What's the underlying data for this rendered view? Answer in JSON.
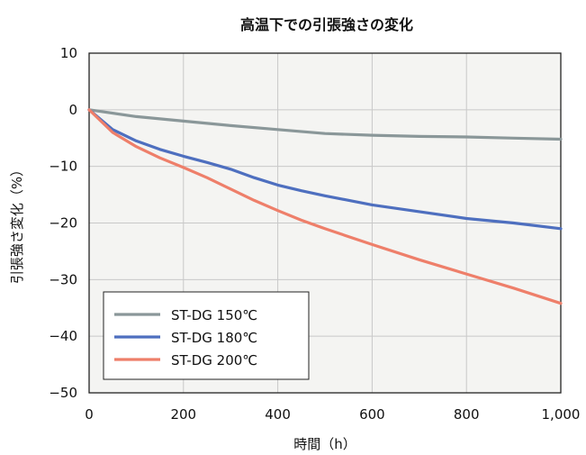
{
  "chart_data": {
    "type": "line",
    "title": "高温下での引張強さの変化",
    "xlabel": "時間（h）",
    "ylabel": "引張強さ変化（%）",
    "xlim": [
      0,
      1000
    ],
    "ylim": [
      -50,
      10
    ],
    "x_ticks": [
      0,
      200,
      400,
      600,
      800,
      1000
    ],
    "x_tick_labels": [
      "0",
      "200",
      "400",
      "600",
      "800",
      "1,000"
    ],
    "y_ticks": [
      10,
      0,
      -10,
      -20,
      -30,
      -40,
      -50
    ],
    "y_tick_labels": [
      "10",
      "0",
      "−10",
      "−20",
      "−30",
      "−40",
      "−50"
    ],
    "grid": true,
    "legend_position": "bottom-left",
    "series": [
      {
        "name": "ST-DG 150℃",
        "color": "#8a9799",
        "x": [
          0,
          100,
          200,
          300,
          400,
          500,
          600,
          700,
          800,
          900,
          1000
        ],
        "y": [
          0,
          -1.2,
          -2.0,
          -2.8,
          -3.5,
          -4.2,
          -4.5,
          -4.7,
          -4.8,
          -5.0,
          -5.2
        ]
      },
      {
        "name": "ST-DG 180℃",
        "color": "#4e6fbf",
        "x": [
          0,
          50,
          100,
          150,
          200,
          250,
          300,
          350,
          400,
          450,
          500,
          600,
          700,
          800,
          900,
          1000
        ],
        "y": [
          0,
          -3.5,
          -5.5,
          -7.0,
          -8.2,
          -9.3,
          -10.5,
          -12.0,
          -13.3,
          -14.3,
          -15.2,
          -16.8,
          -18.0,
          -19.2,
          -20.0,
          -21.0
        ]
      },
      {
        "name": "ST-DG 200℃",
        "color": "#ee7f6a",
        "x": [
          0,
          50,
          100,
          150,
          200,
          250,
          300,
          350,
          400,
          450,
          500,
          600,
          700,
          800,
          900,
          1000
        ],
        "y": [
          0,
          -4.0,
          -6.5,
          -8.5,
          -10.2,
          -12.0,
          -14.0,
          -16.0,
          -17.8,
          -19.5,
          -21.0,
          -23.8,
          -26.5,
          -29.0,
          -31.5,
          -34.2
        ]
      }
    ]
  }
}
